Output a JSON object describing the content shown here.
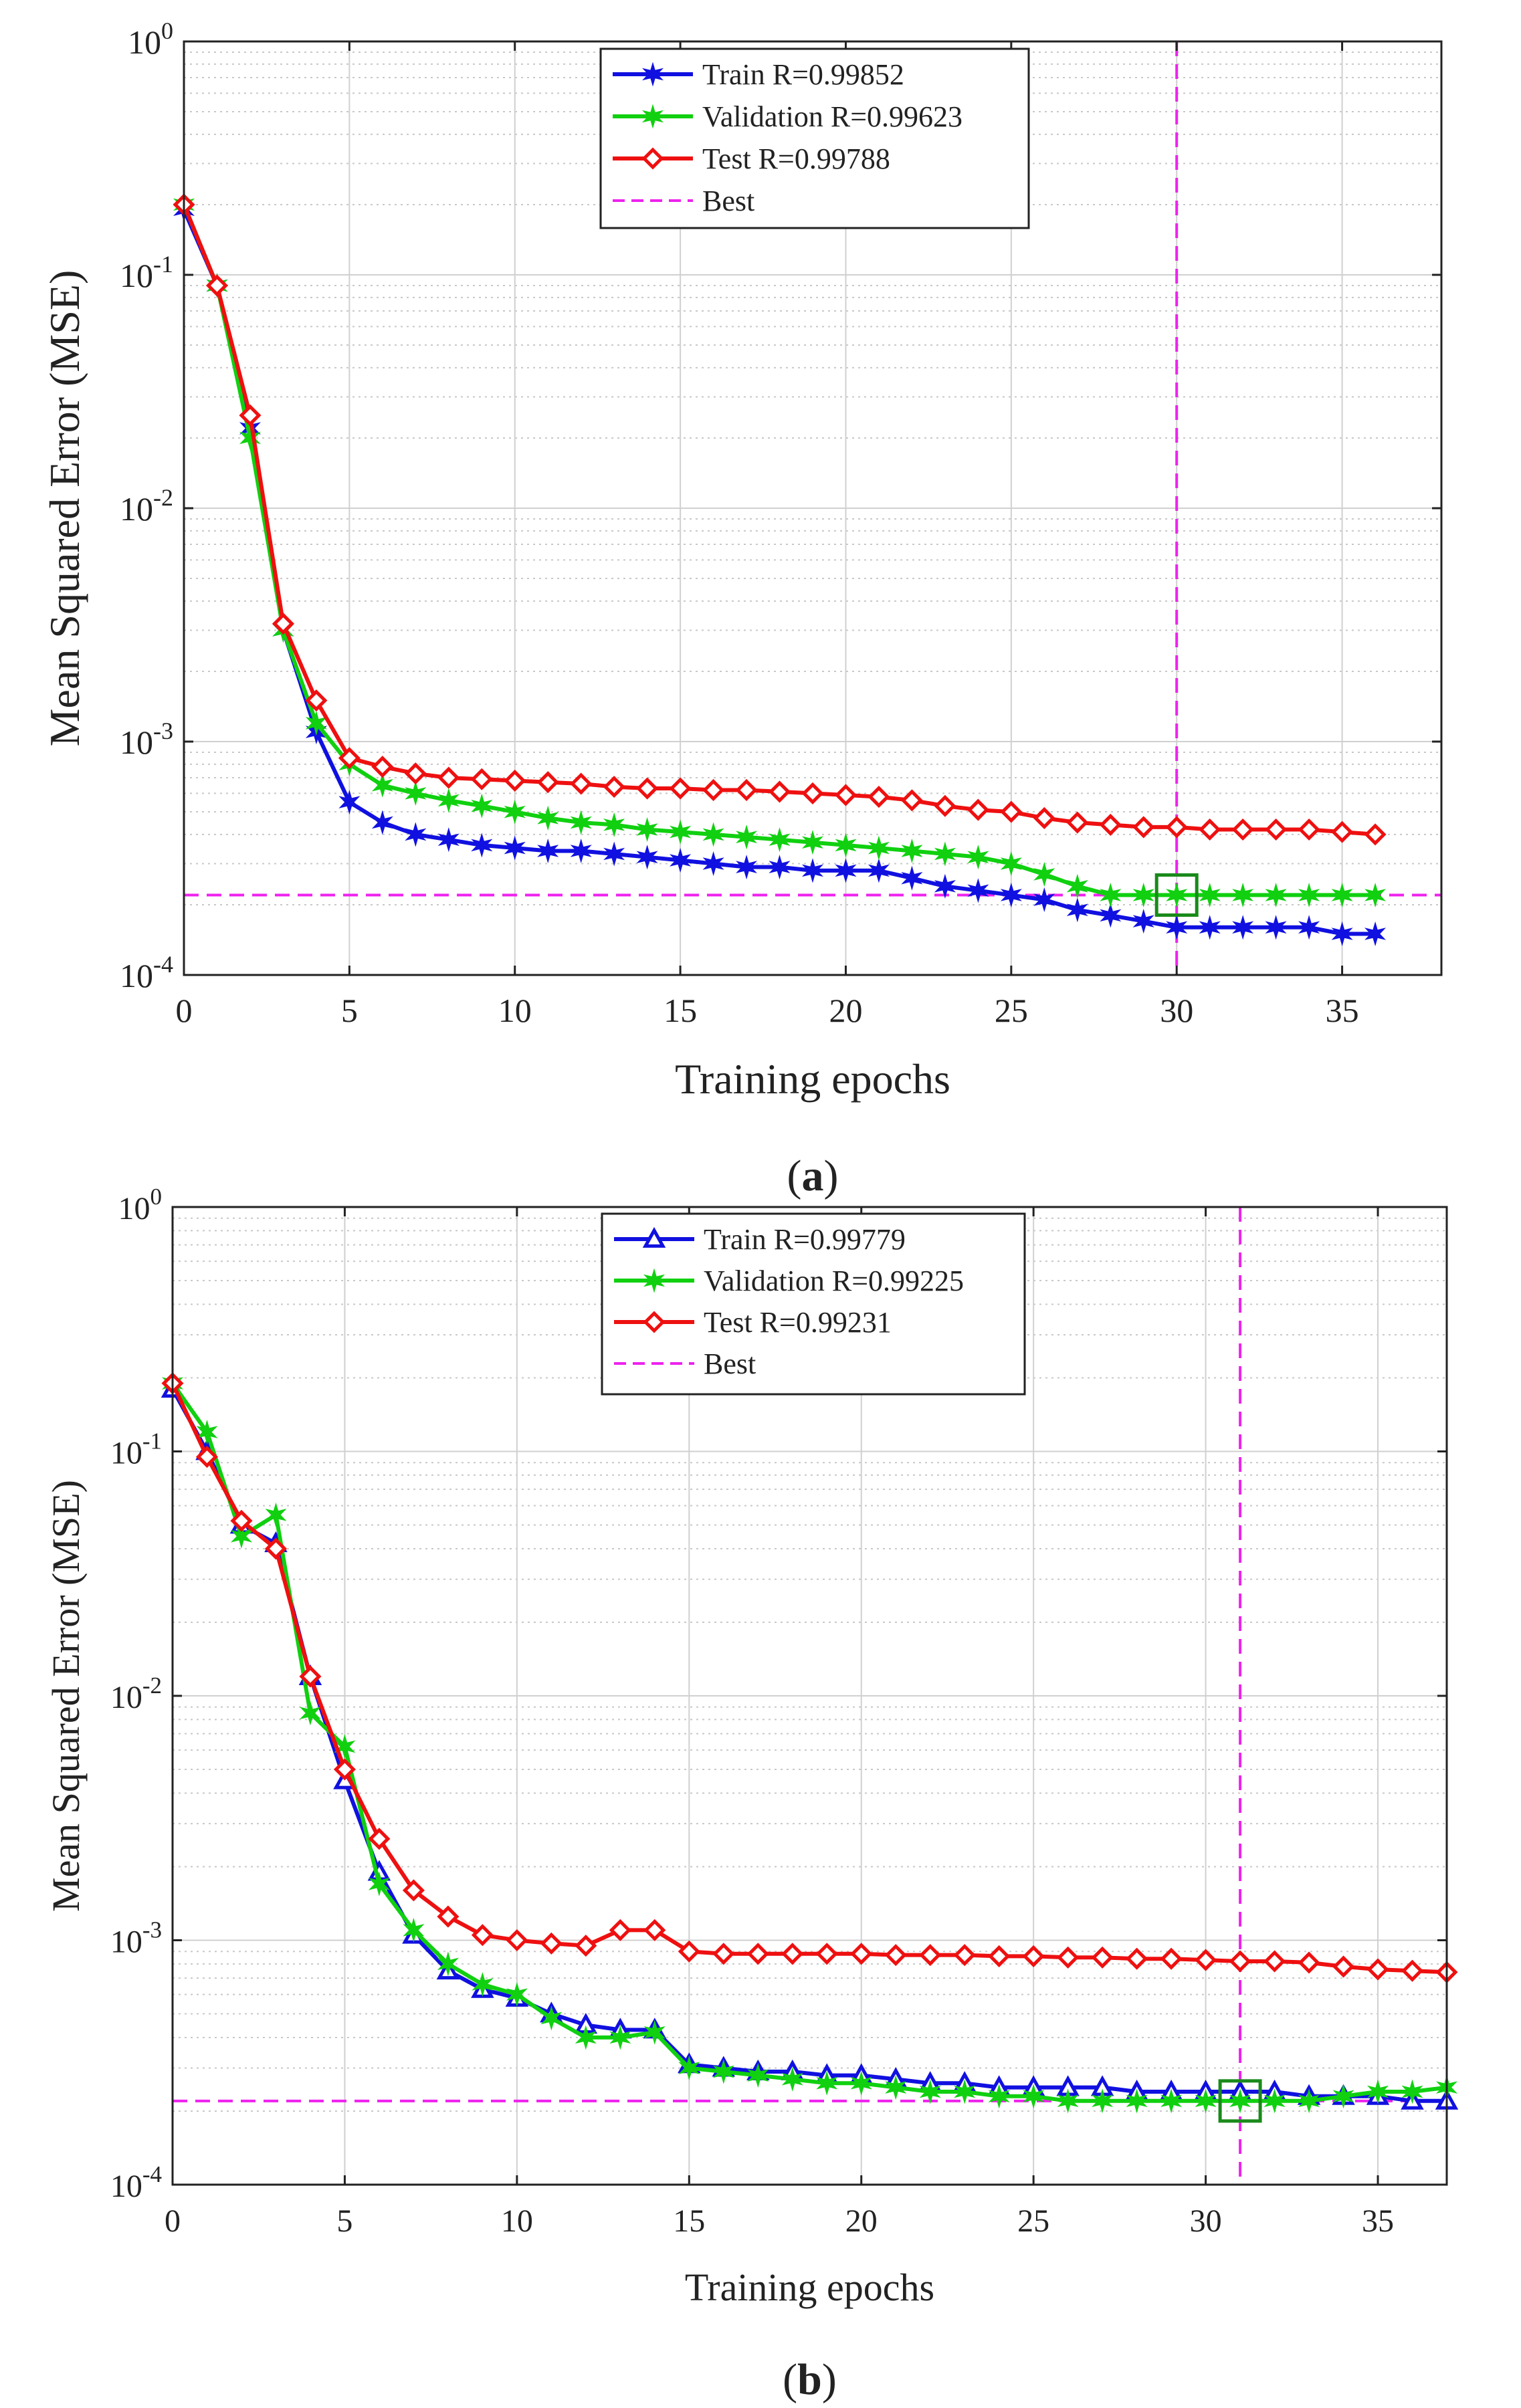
{
  "figure": {
    "panels": [
      "(a)",
      "(b)"
    ]
  },
  "chart_data": [
    {
      "type": "line",
      "panel_label": "(a)",
      "xlabel": "Training epochs",
      "ylabel": "Mean Squared Error (MSE)",
      "yscale": "log",
      "xlim": [
        0,
        38
      ],
      "ylim": [
        0.0001,
        1
      ],
      "xticks": [
        0,
        5,
        10,
        15,
        20,
        25,
        30,
        35
      ],
      "xtick_labels": [
        "0",
        "5",
        "10",
        "15",
        "20",
        "25",
        "30",
        "35"
      ],
      "yticks": [
        1,
        0.1,
        0.01,
        0.001,
        0.0001
      ],
      "ytick_labels": [
        {
          "base": "10",
          "exp": "0"
        },
        {
          "base": "10",
          "exp": "-1"
        },
        {
          "base": "10",
          "exp": "-2"
        },
        {
          "base": "10",
          "exp": "-3"
        },
        {
          "base": "10",
          "exp": "-4"
        }
      ],
      "x": [
        0,
        1,
        2,
        3,
        4,
        5,
        6,
        7,
        8,
        9,
        10,
        11,
        12,
        13,
        14,
        15,
        16,
        17,
        18,
        19,
        20,
        21,
        22,
        23,
        24,
        25,
        26,
        27,
        28,
        29,
        30,
        31,
        32,
        33,
        34,
        35,
        36
      ],
      "series": [
        {
          "name": "Train",
          "legend": "Train  R=0.99852",
          "color": "#1010e0",
          "marker": "star",
          "values": [
            0.19,
            0.09,
            0.022,
            0.003,
            0.0011,
            0.00055,
            0.00045,
            0.0004,
            0.00038,
            0.00036,
            0.00035,
            0.00034,
            0.00034,
            0.00033,
            0.00032,
            0.00031,
            0.0003,
            0.00029,
            0.00029,
            0.00028,
            0.00028,
            0.00028,
            0.00026,
            0.00024,
            0.00023,
            0.00022,
            0.00021,
            0.00019,
            0.00018,
            0.00017,
            0.00016,
            0.00016,
            0.00016,
            0.00016,
            0.00016,
            0.00015,
            0.00015
          ]
        },
        {
          "name": "Validation",
          "legend": "Validation  R=0.99623",
          "color": "#10d010",
          "marker": "star",
          "values": [
            0.2,
            0.09,
            0.02,
            0.003,
            0.0012,
            0.0008,
            0.00065,
            0.0006,
            0.00056,
            0.00053,
            0.0005,
            0.00047,
            0.00045,
            0.00044,
            0.00042,
            0.00041,
            0.0004,
            0.00039,
            0.00038,
            0.00037,
            0.00036,
            0.00035,
            0.00034,
            0.00033,
            0.00032,
            0.0003,
            0.00027,
            0.00024,
            0.00022,
            0.00022,
            0.00022,
            0.00022,
            0.00022,
            0.00022,
            0.00022,
            0.00022,
            0.00022
          ]
        },
        {
          "name": "Test",
          "legend": "Test R=0.99788",
          "color": "#ee1010",
          "marker": "diamond",
          "values": [
            0.2,
            0.09,
            0.025,
            0.0032,
            0.0015,
            0.00085,
            0.00078,
            0.00073,
            0.0007,
            0.00069,
            0.00068,
            0.00067,
            0.00066,
            0.00064,
            0.00063,
            0.00063,
            0.00062,
            0.00062,
            0.00061,
            0.0006,
            0.00059,
            0.00058,
            0.00056,
            0.00053,
            0.00051,
            0.0005,
            0.00047,
            0.00045,
            0.00044,
            0.00043,
            0.00043,
            0.00042,
            0.00042,
            0.00042,
            0.00042,
            0.00041,
            0.0004
          ]
        }
      ],
      "best": {
        "legend": "Best",
        "epoch": 30,
        "value": 0.00022,
        "color": "#ee22ee"
      }
    },
    {
      "type": "line",
      "panel_label": "(b)",
      "xlabel": "Training epochs",
      "ylabel": "Mean Squared Error  (MSE)",
      "yscale": "log",
      "xlim": [
        0,
        37
      ],
      "ylim": [
        0.0001,
        1
      ],
      "xticks": [
        0,
        5,
        10,
        15,
        20,
        25,
        30,
        35
      ],
      "xtick_labels": [
        "0",
        "5",
        "10",
        "15",
        "20",
        "25",
        "30",
        "35"
      ],
      "yticks": [
        1,
        0.1,
        0.01,
        0.001,
        0.0001
      ],
      "ytick_labels": [
        {
          "base": "10",
          "exp": "0"
        },
        {
          "base": "10",
          "exp": "-1"
        },
        {
          "base": "10",
          "exp": "-2"
        },
        {
          "base": "10",
          "exp": "-3"
        },
        {
          "base": "10",
          "exp": "-4"
        }
      ],
      "x": [
        0,
        1,
        2,
        3,
        4,
        5,
        6,
        7,
        8,
        9,
        10,
        11,
        12,
        13,
        14,
        15,
        16,
        17,
        18,
        19,
        20,
        21,
        22,
        23,
        24,
        25,
        26,
        27,
        28,
        29,
        30,
        31,
        32,
        33,
        34,
        35,
        36,
        37
      ],
      "series": [
        {
          "name": "Train",
          "legend": "Train R=0.99779",
          "color": "#1010e0",
          "marker": "triangle",
          "values": [
            0.18,
            0.1,
            0.05,
            0.042,
            0.012,
            0.0045,
            0.0019,
            0.00105,
            0.00075,
            0.00063,
            0.00058,
            0.0005,
            0.00045,
            0.00043,
            0.00043,
            0.00031,
            0.0003,
            0.00029,
            0.00029,
            0.00028,
            0.00028,
            0.00027,
            0.00026,
            0.00026,
            0.00025,
            0.00025,
            0.00025,
            0.00025,
            0.00024,
            0.00024,
            0.00024,
            0.00024,
            0.00024,
            0.00023,
            0.00023,
            0.00023,
            0.00022,
            0.00022
          ]
        },
        {
          "name": "Validation",
          "legend": "Validation R=0.99225",
          "color": "#10d010",
          "marker": "star",
          "values": [
            0.19,
            0.12,
            0.045,
            0.055,
            0.0085,
            0.0062,
            0.0017,
            0.0011,
            0.0008,
            0.00066,
            0.0006,
            0.00048,
            0.0004,
            0.0004,
            0.00042,
            0.0003,
            0.00029,
            0.00028,
            0.00027,
            0.00026,
            0.00026,
            0.00025,
            0.00024,
            0.00024,
            0.00023,
            0.00023,
            0.00022,
            0.00022,
            0.00022,
            0.00022,
            0.00022,
            0.00022,
            0.00022,
            0.00022,
            0.00023,
            0.00024,
            0.00024,
            0.00025
          ]
        },
        {
          "name": "Test",
          "legend": "Test R=0.99231",
          "color": "#ee1010",
          "marker": "diamond",
          "values": [
            0.19,
            0.095,
            0.052,
            0.04,
            0.012,
            0.005,
            0.0026,
            0.0016,
            0.00125,
            0.00105,
            0.001,
            0.00097,
            0.00095,
            0.0011,
            0.0011,
            0.0009,
            0.00088,
            0.00088,
            0.00088,
            0.00088,
            0.00088,
            0.00087,
            0.00087,
            0.00087,
            0.00086,
            0.00086,
            0.00085,
            0.00085,
            0.00084,
            0.00084,
            0.00083,
            0.00082,
            0.00082,
            0.00081,
            0.00078,
            0.00076,
            0.00075,
            0.00074
          ]
        }
      ],
      "best": {
        "legend": "Best",
        "epoch": 31,
        "value": 0.00022,
        "color": "#ee22ee"
      }
    }
  ]
}
